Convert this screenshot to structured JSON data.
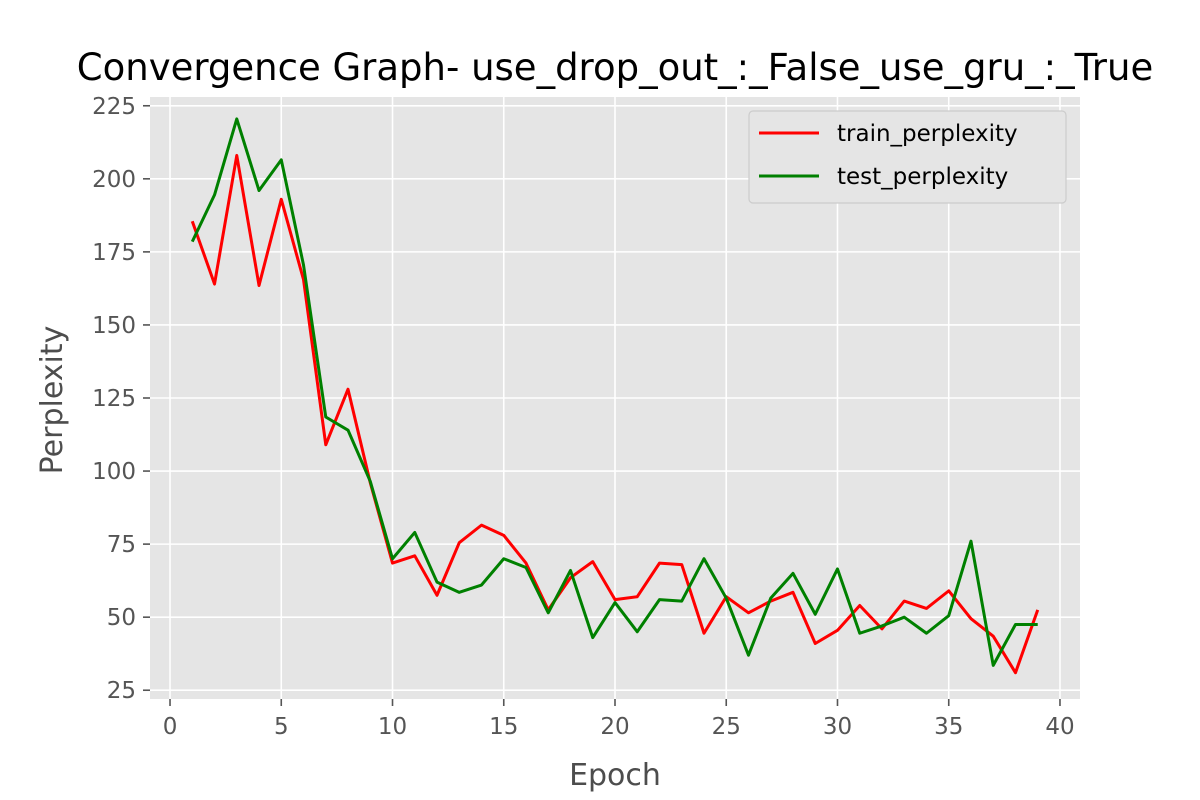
{
  "chart_data": {
    "type": "line",
    "title": "Convergence Graph- use_drop_out_:_False_use_gru_:_True",
    "xlabel": "Epoch",
    "ylabel": "Perplexity",
    "xlim": [
      -0.9,
      40.9
    ],
    "ylim": [
      22,
      228
    ],
    "xticks": [
      0,
      5,
      10,
      15,
      20,
      25,
      30,
      35,
      40
    ],
    "yticks": [
      25,
      50,
      75,
      100,
      125,
      150,
      175,
      200,
      225
    ],
    "grid": true,
    "legend_position": "upper right",
    "x": [
      1,
      2,
      3,
      4,
      5,
      6,
      7,
      8,
      9,
      10,
      11,
      12,
      13,
      14,
      15,
      16,
      17,
      18,
      19,
      20,
      21,
      22,
      23,
      24,
      25,
      26,
      27,
      28,
      29,
      30,
      31,
      32,
      33,
      34,
      35,
      36,
      37,
      38,
      39
    ],
    "series": [
      {
        "name": "train_perplexity",
        "color": "#ff0000",
        "values": [
          185.5,
          164.0,
          208.0,
          163.5,
          193.0,
          165.5,
          109.0,
          128.0,
          96.0,
          68.5,
          71.0,
          57.5,
          75.5,
          81.5,
          78.0,
          68.5,
          52.5,
          63.5,
          69.0,
          56.0,
          57.0,
          68.5,
          68.0,
          44.5,
          57.0,
          51.5,
          55.5,
          58.5,
          41.0,
          45.5,
          54.0,
          46.0,
          55.5,
          53.0,
          59.0,
          49.5,
          43.5,
          31.0,
          52.5
        ]
      },
      {
        "name": "test_perplexity",
        "color": "#008000",
        "values": [
          178.5,
          194.5,
          220.5,
          196.0,
          206.5,
          170.5,
          118.5,
          114.0,
          96.5,
          70.0,
          79.0,
          62.0,
          58.5,
          61.0,
          70.0,
          67.0,
          51.5,
          66.0,
          43.0,
          55.0,
          45.0,
          56.0,
          55.5,
          70.0,
          56.5,
          37.0,
          56.5,
          65.0,
          51.0,
          66.5,
          44.5,
          47.0,
          50.0,
          44.5,
          50.5,
          76.0,
          33.5,
          47.5,
          47.5
        ]
      }
    ]
  }
}
